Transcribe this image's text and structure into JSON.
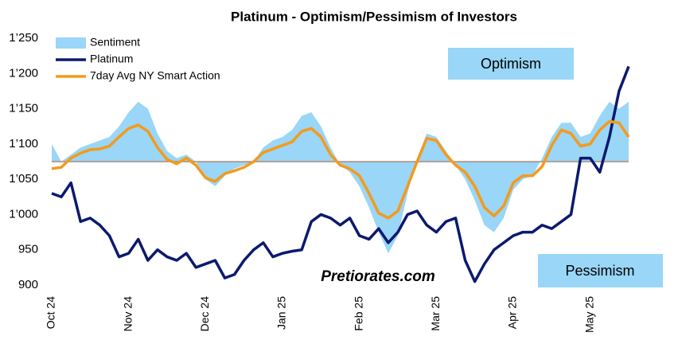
{
  "chart_data": {
    "type": "line",
    "title": "Platinum - Optimism/Pessimism of Investors",
    "categories": [
      "Oct 24",
      null,
      null,
      null,
      null,
      null,
      null,
      null,
      "Nov 24",
      null,
      null,
      null,
      null,
      null,
      null,
      null,
      "Dec 24",
      null,
      null,
      null,
      null,
      null,
      null,
      null,
      "Jan 25",
      null,
      null,
      null,
      null,
      null,
      null,
      null,
      "Feb 25",
      null,
      null,
      null,
      null,
      null,
      null,
      null,
      "Mar 25",
      null,
      null,
      null,
      null,
      null,
      null,
      null,
      "Apr 25",
      null,
      null,
      null,
      null,
      null,
      null,
      null,
      "May 25",
      null,
      null,
      null,
      null
    ],
    "baseline": 1075,
    "series": [
      {
        "name": "Sentiment",
        "color": "#99d6f7",
        "style": "area",
        "values": [
          1100,
          1075,
          1085,
          1095,
          1100,
          1105,
          1110,
          1125,
          1145,
          1160,
          1150,
          1115,
          1090,
          1080,
          1085,
          1075,
          1050,
          1040,
          1055,
          1065,
          1070,
          1075,
          1095,
          1105,
          1110,
          1120,
          1140,
          1145,
          1125,
          1095,
          1070,
          1060,
          1040,
          1010,
          975,
          945,
          970,
          1030,
          1080,
          1115,
          1110,
          1090,
          1070,
          1050,
          1020,
          985,
          975,
          995,
          1035,
          1050,
          1055,
          1080,
          1110,
          1130,
          1130,
          1110,
          1115,
          1140,
          1160,
          1150,
          1160
        ]
      },
      {
        "name": "Platinum",
        "color": "#0b1a6e",
        "style": "line",
        "values": [
          1030,
          1025,
          1045,
          990,
          995,
          985,
          970,
          940,
          945,
          965,
          935,
          950,
          940,
          935,
          945,
          925,
          930,
          935,
          910,
          915,
          935,
          950,
          960,
          940,
          945,
          948,
          950,
          990,
          1000,
          995,
          985,
          995,
          970,
          965,
          980,
          960,
          975,
          1000,
          1005,
          985,
          975,
          990,
          995,
          935,
          905,
          930,
          950,
          960,
          970,
          975,
          975,
          985,
          980,
          990,
          1000,
          1080,
          1080,
          1060,
          1110,
          1175,
          1210
        ]
      },
      {
        "name": "7day Avg NY Smart Action",
        "color": "#f59a1b",
        "style": "line",
        "values": [
          1065,
          1067,
          1080,
          1087,
          1092,
          1093,
          1097,
          1110,
          1122,
          1127,
          1118,
          1095,
          1078,
          1072,
          1080,
          1070,
          1052,
          1047,
          1058,
          1062,
          1067,
          1075,
          1088,
          1093,
          1098,
          1103,
          1118,
          1122,
          1110,
          1085,
          1070,
          1065,
          1055,
          1030,
          1002,
          995,
          1005,
          1040,
          1075,
          1108,
          1105,
          1085,
          1070,
          1060,
          1040,
          1010,
          998,
          1012,
          1045,
          1055,
          1055,
          1068,
          1098,
          1120,
          1115,
          1097,
          1100,
          1120,
          1132,
          1130,
          1110
        ]
      }
    ],
    "ylim": [
      900,
      1250
    ],
    "yticks": [
      900,
      950,
      {
        "value": 1000,
        "label": "1’000"
      },
      {
        "value": 1050,
        "label": "1’050"
      },
      {
        "value": 1100,
        "label": "1’100"
      },
      {
        "value": 1150,
        "label": "1’150"
      },
      {
        "value": 1200,
        "label": "1’200"
      },
      {
        "value": 1250,
        "label": "1’250"
      }
    ],
    "legend": "top-left",
    "annotations": [
      {
        "text": "Optimism"
      },
      {
        "text": "Pessimism"
      },
      {
        "text": "Pretiorates.com"
      }
    ]
  }
}
